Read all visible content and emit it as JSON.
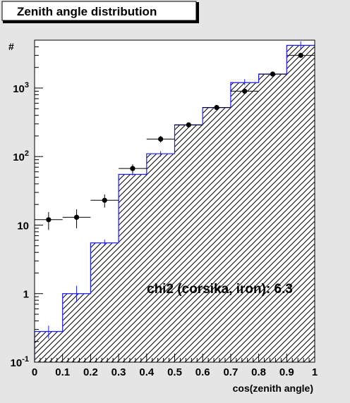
{
  "chart_data": {
    "type": "histogram",
    "title": "Zenith angle distribution",
    "xlabel": "cos(zenith angle)",
    "ylabel": "#",
    "xlim": [
      0,
      1
    ],
    "ylim": [
      0.1,
      5000
    ],
    "yscale": "log",
    "bin_edges": [
      0,
      0.1,
      0.2,
      0.3,
      0.4,
      0.5,
      0.6,
      0.7,
      0.8,
      0.9,
      1.0
    ],
    "x_ticks": [
      "0",
      "0.1",
      "0.2",
      "0.3",
      "0.4",
      "0.5",
      "0.6",
      "0.7",
      "0.8",
      "0.9",
      "1"
    ],
    "y_ticks": [
      {
        "base": "10",
        "exp": "-1",
        "value": 0.1
      },
      {
        "base": "1",
        "exp": "",
        "value": 1
      },
      {
        "base": "10",
        "exp": "",
        "value": 10
      },
      {
        "base": "10",
        "exp": "2",
        "value": 100
      },
      {
        "base": "10",
        "exp": "3",
        "value": 1000
      }
    ],
    "histogram": {
      "values": [
        0.28,
        1.0,
        5.5,
        55,
        110,
        290,
        520,
        1200,
        1600,
        4200
      ],
      "err_low": [
        0.22,
        0.75,
        5.0,
        53,
        100,
        280,
        505,
        1100,
        1500,
        3700
      ],
      "err_high": [
        0.34,
        1.3,
        6.1,
        58,
        120,
        300,
        535,
        1350,
        1700,
        4800
      ],
      "line_color": "#1a1aff",
      "hatch": "diagonal"
    },
    "data_points": {
      "x": [
        0.05,
        0.15,
        0.25,
        0.35,
        0.45,
        0.55,
        0.65,
        0.75,
        0.85,
        0.95
      ],
      "y": [
        12,
        13,
        23,
        67,
        180,
        290,
        520,
        900,
        1600,
        3000
      ],
      "y_low": [
        8.5,
        9,
        18,
        57,
        160,
        270,
        500,
        840,
        1520,
        2850
      ],
      "y_high": [
        15.5,
        17,
        28,
        77,
        200,
        310,
        540,
        960,
        1680,
        3150
      ],
      "color": "#000000"
    },
    "annotation": "chi2 (corsika, iron): 6.3"
  }
}
